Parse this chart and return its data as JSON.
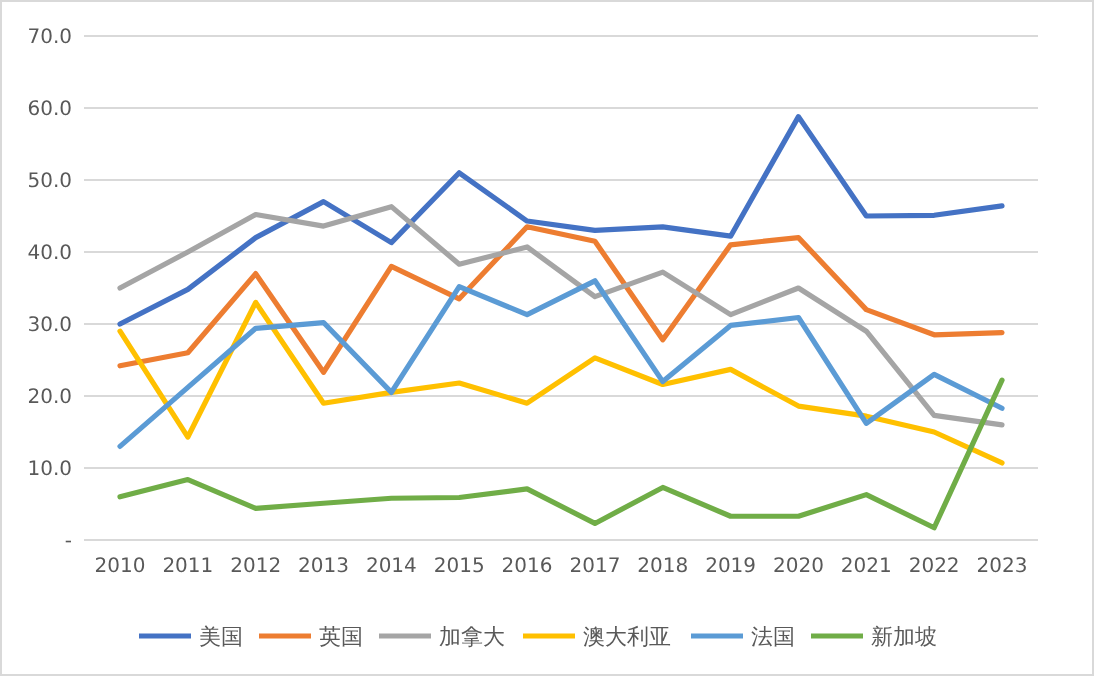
{
  "chart_data": {
    "type": "line",
    "categories": [
      "2010",
      "2011",
      "2012",
      "2013",
      "2014",
      "2015",
      "2016",
      "2017",
      "2018",
      "2019",
      "2020",
      "2021",
      "2022",
      "2023"
    ],
    "series": [
      {
        "name": "美国",
        "color": "#4472c4",
        "values": [
          30,
          34.8,
          42,
          47,
          41.3,
          51,
          44.3,
          43,
          43.5,
          42.2,
          58.8,
          45,
          45.1,
          46.4
        ]
      },
      {
        "name": "英国",
        "color": "#ed7d31",
        "values": [
          24.2,
          26,
          37,
          23.3,
          38,
          33.5,
          43.5,
          41.5,
          27.8,
          41,
          42,
          32,
          28.5,
          28.8
        ]
      },
      {
        "name": "加拿大",
        "color": "#a5a5a5",
        "values": [
          35,
          40,
          45.2,
          43.6,
          46.3,
          38.3,
          40.7,
          33.8,
          37.2,
          31.3,
          35,
          29,
          17.3,
          16
        ]
      },
      {
        "name": "澳大利亚",
        "color": "#ffc000",
        "values": [
          29,
          14.3,
          33,
          19,
          20.5,
          21.8,
          19,
          25.3,
          21.6,
          23.7,
          18.6,
          17.2,
          15,
          10.7
        ]
      },
      {
        "name": "法国",
        "color": "#5b9bd5",
        "values": [
          13,
          21.2,
          29.4,
          30.2,
          20.5,
          35.2,
          31.3,
          36,
          22,
          29.8,
          30.9,
          16.2,
          23,
          18.3
        ]
      },
      {
        "name": "新加坡",
        "color": "#70ad47",
        "values": [
          6,
          8.4,
          4.4,
          5.1,
          5.8,
          5.9,
          7.1,
          2.3,
          7.3,
          3.3,
          3.3,
          6.3,
          1.7,
          22.2
        ]
      }
    ],
    "ylim": [
      0,
      70
    ],
    "yticks": [
      {
        "value": 0,
        "label": "-"
      },
      {
        "value": 10,
        "label": "10.0"
      },
      {
        "value": 20,
        "label": "20.0"
      },
      {
        "value": 30,
        "label": "30.0"
      },
      {
        "value": 40,
        "label": "40.0"
      },
      {
        "value": 50,
        "label": "50.0"
      },
      {
        "value": 60,
        "label": "60.0"
      },
      {
        "value": 70,
        "label": "70.0"
      }
    ],
    "grid": "y",
    "legend": "bottom",
    "marker": "none",
    "line_style": "solid"
  }
}
